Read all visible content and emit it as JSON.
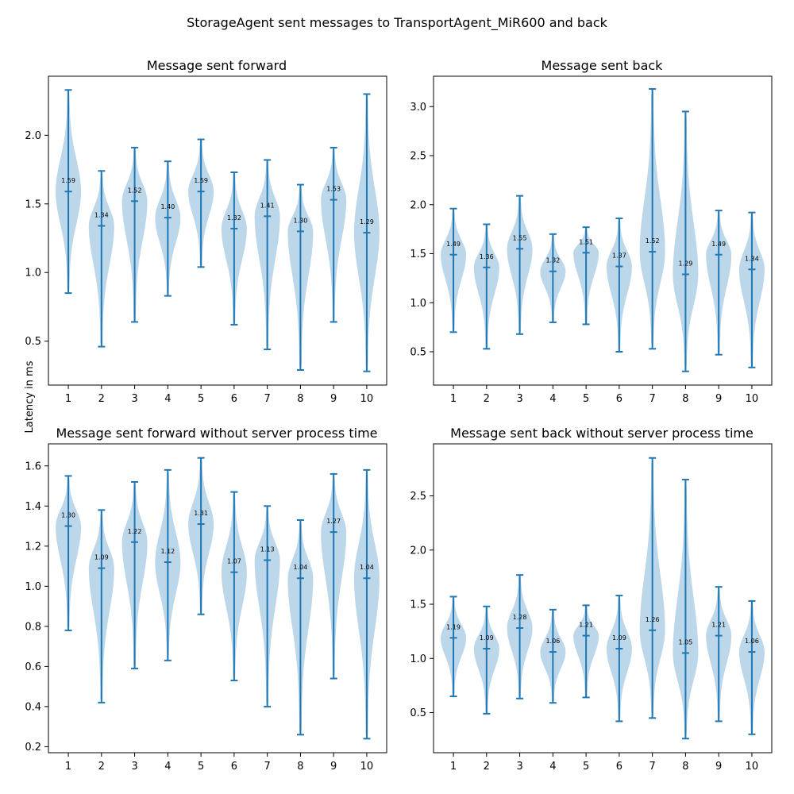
{
  "figure": {
    "suptitle": "StorageAgent sent messages to TransportAgent_MiR600 and back",
    "shared_ylabel": "Latency in ms"
  },
  "colors": {
    "violin_fill": "#a6c8e3",
    "line": "#1f77b4",
    "axes": "#000000"
  },
  "chart_data": [
    {
      "type": "violin",
      "title": "Message sent forward",
      "xlabel": "",
      "ylabel": "",
      "categories": [
        "1",
        "2",
        "3",
        "4",
        "5",
        "6",
        "7",
        "8",
        "9",
        "10"
      ],
      "ylim": [
        0.18,
        2.43
      ],
      "yticks": [
        0.5,
        1.0,
        1.5,
        2.0
      ],
      "yticklabels": [
        "0.5",
        "1.0",
        "1.5",
        "2.0"
      ],
      "grid": false,
      "violins": [
        {
          "min": 0.85,
          "median": 1.59,
          "max": 2.33,
          "label": "1.59"
        },
        {
          "min": 0.46,
          "median": 1.34,
          "max": 1.74,
          "label": "1.34"
        },
        {
          "min": 0.64,
          "median": 1.52,
          "max": 1.91,
          "label": "1.52"
        },
        {
          "min": 0.83,
          "median": 1.4,
          "max": 1.81,
          "label": "1.40"
        },
        {
          "min": 1.04,
          "median": 1.59,
          "max": 1.97,
          "label": "1.59"
        },
        {
          "min": 0.62,
          "median": 1.32,
          "max": 1.73,
          "label": "1.32"
        },
        {
          "min": 0.44,
          "median": 1.41,
          "max": 1.82,
          "label": "1.41"
        },
        {
          "min": 0.29,
          "median": 1.3,
          "max": 1.64,
          "label": "1.30"
        },
        {
          "min": 0.64,
          "median": 1.53,
          "max": 1.91,
          "label": "1.53"
        },
        {
          "min": 0.28,
          "median": 1.29,
          "max": 2.3,
          "label": "1.29"
        }
      ]
    },
    {
      "type": "violin",
      "title": "Message sent back",
      "xlabel": "",
      "ylabel": "",
      "categories": [
        "1",
        "2",
        "3",
        "4",
        "5",
        "6",
        "7",
        "8",
        "9",
        "10"
      ],
      "ylim": [
        0.16,
        3.31
      ],
      "yticks": [
        0.5,
        1.0,
        1.5,
        2.0,
        2.5,
        3.0
      ],
      "yticklabels": [
        "0.5",
        "1.0",
        "1.5",
        "2.0",
        "2.5",
        "3.0"
      ],
      "grid": false,
      "violins": [
        {
          "min": 0.7,
          "median": 1.49,
          "max": 1.96,
          "label": "1.49"
        },
        {
          "min": 0.53,
          "median": 1.36,
          "max": 1.8,
          "label": "1.36"
        },
        {
          "min": 0.68,
          "median": 1.55,
          "max": 2.09,
          "label": "1.55"
        },
        {
          "min": 0.8,
          "median": 1.32,
          "max": 1.7,
          "label": "1.32"
        },
        {
          "min": 0.78,
          "median": 1.51,
          "max": 1.77,
          "label": "1.51"
        },
        {
          "min": 0.5,
          "median": 1.37,
          "max": 1.86,
          "label": "1.37"
        },
        {
          "min": 0.53,
          "median": 1.52,
          "max": 3.18,
          "label": "1.52"
        },
        {
          "min": 0.3,
          "median": 1.29,
          "max": 2.95,
          "label": "1.29"
        },
        {
          "min": 0.47,
          "median": 1.49,
          "max": 1.94,
          "label": "1.49"
        },
        {
          "min": 0.34,
          "median": 1.34,
          "max": 1.92,
          "label": "1.34"
        }
      ]
    },
    {
      "type": "violin",
      "title": "Message sent forward without server process time",
      "xlabel": "",
      "ylabel": "",
      "categories": [
        "1",
        "2",
        "3",
        "4",
        "5",
        "6",
        "7",
        "8",
        "9",
        "10"
      ],
      "ylim": [
        0.17,
        1.71
      ],
      "yticks": [
        0.2,
        0.4,
        0.6,
        0.8,
        1.0,
        1.2,
        1.4,
        1.6
      ],
      "yticklabels": [
        "0.2",
        "0.4",
        "0.6",
        "0.8",
        "1.0",
        "1.2",
        "1.4",
        "1.6"
      ],
      "grid": false,
      "violins": [
        {
          "min": 0.78,
          "median": 1.3,
          "max": 1.55,
          "label": "1.30"
        },
        {
          "min": 0.42,
          "median": 1.09,
          "max": 1.38,
          "label": "1.09"
        },
        {
          "min": 0.59,
          "median": 1.22,
          "max": 1.52,
          "label": "1.22"
        },
        {
          "min": 0.63,
          "median": 1.12,
          "max": 1.58,
          "label": "1.12"
        },
        {
          "min": 0.86,
          "median": 1.31,
          "max": 1.64,
          "label": "1.31"
        },
        {
          "min": 0.53,
          "median": 1.07,
          "max": 1.47,
          "label": "1.07"
        },
        {
          "min": 0.4,
          "median": 1.13,
          "max": 1.4,
          "label": "1.13"
        },
        {
          "min": 0.26,
          "median": 1.04,
          "max": 1.33,
          "label": "1.04"
        },
        {
          "min": 0.54,
          "median": 1.27,
          "max": 1.56,
          "label": "1.27"
        },
        {
          "min": 0.24,
          "median": 1.04,
          "max": 1.58,
          "label": "1.04"
        }
      ]
    },
    {
      "type": "violin",
      "title": "Message sent back without server process time",
      "xlabel": "",
      "ylabel": "",
      "categories": [
        "1",
        "2",
        "3",
        "4",
        "5",
        "6",
        "7",
        "8",
        "9",
        "10"
      ],
      "ylim": [
        0.13,
        2.98
      ],
      "yticks": [
        0.5,
        1.0,
        1.5,
        2.0,
        2.5
      ],
      "yticklabels": [
        "0.5",
        "1.0",
        "1.5",
        "2.0",
        "2.5"
      ],
      "grid": false,
      "violins": [
        {
          "min": 0.65,
          "median": 1.19,
          "max": 1.57,
          "label": "1.19"
        },
        {
          "min": 0.49,
          "median": 1.09,
          "max": 1.48,
          "label": "1.09"
        },
        {
          "min": 0.63,
          "median": 1.28,
          "max": 1.77,
          "label": "1.28"
        },
        {
          "min": 0.59,
          "median": 1.06,
          "max": 1.45,
          "label": "1.06"
        },
        {
          "min": 0.64,
          "median": 1.21,
          "max": 1.49,
          "label": "1.21"
        },
        {
          "min": 0.42,
          "median": 1.09,
          "max": 1.58,
          "label": "1.09"
        },
        {
          "min": 0.45,
          "median": 1.26,
          "max": 2.85,
          "label": "1.26"
        },
        {
          "min": 0.26,
          "median": 1.05,
          "max": 2.65,
          "label": "1.05"
        },
        {
          "min": 0.42,
          "median": 1.21,
          "max": 1.66,
          "label": "1.21"
        },
        {
          "min": 0.3,
          "median": 1.06,
          "max": 1.53,
          "label": "1.06"
        }
      ]
    }
  ]
}
